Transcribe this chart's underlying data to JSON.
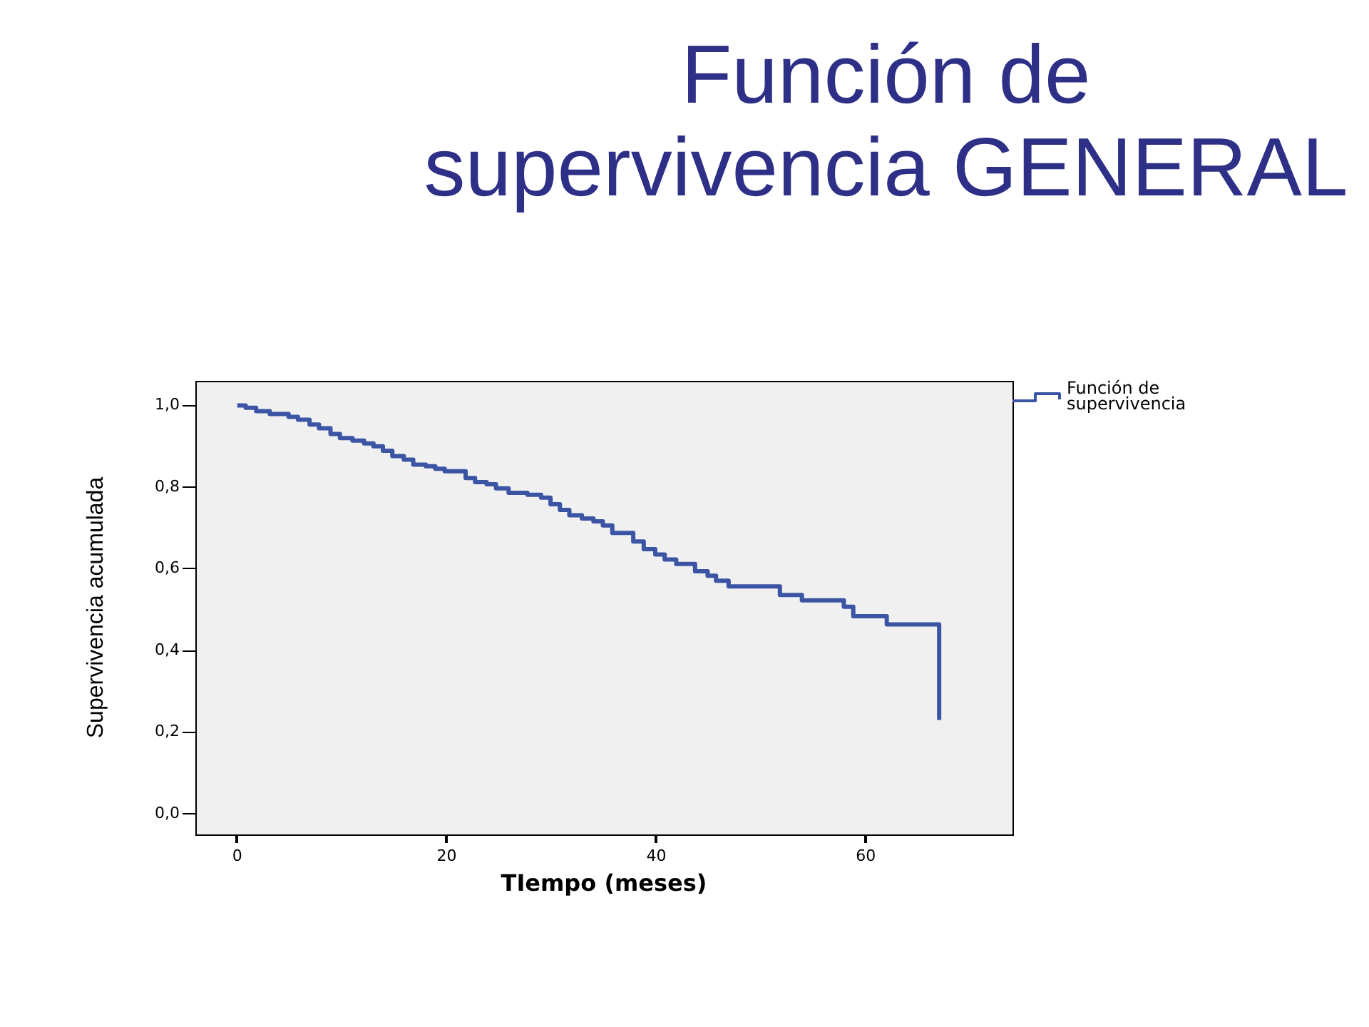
{
  "chart_data": {
    "type": "step",
    "title": "Función de supervivencia GENERAL",
    "xlabel": "TIempo (meses)",
    "ylabel": "Supervivencia acumulada",
    "x": [
      0,
      0.8,
      1.8,
      3.1,
      4.9,
      5.8,
      6.9,
      7.8,
      8.9,
      9.8,
      11.0,
      12.1,
      13.0,
      13.9,
      14.8,
      15.9,
      16.8,
      18.0,
      18.9,
      19.8,
      21.8,
      22.7,
      23.8,
      24.7,
      25.9,
      27.7,
      29.0,
      29.9,
      30.8,
      31.7,
      32.9,
      34.0,
      34.9,
      35.8,
      37.8,
      38.8,
      39.9,
      40.8,
      41.9,
      43.7,
      44.9,
      45.7,
      46.9,
      51.8,
      53.9,
      57.9,
      58.8,
      62.0,
      67.0
    ],
    "series": [
      {
        "name": "Función de supervivencia",
        "color": "#3b54a4",
        "values": [
          1.0,
          0.994,
          0.986,
          0.979,
          0.972,
          0.965,
          0.953,
          0.944,
          0.93,
          0.92,
          0.914,
          0.907,
          0.9,
          0.889,
          0.876,
          0.867,
          0.855,
          0.851,
          0.845,
          0.839,
          0.822,
          0.812,
          0.807,
          0.797,
          0.786,
          0.781,
          0.774,
          0.758,
          0.744,
          0.731,
          0.723,
          0.716,
          0.706,
          0.688,
          0.667,
          0.648,
          0.635,
          0.623,
          0.612,
          0.594,
          0.583,
          0.571,
          0.557,
          0.536,
          0.523,
          0.507,
          0.484,
          0.464,
          0.23
        ]
      }
    ],
    "xlim": [
      -4,
      74
    ],
    "xticks": [
      0,
      20,
      40,
      60
    ],
    "ylim": [
      -0.05,
      1.06
    ],
    "yticks": [
      {
        "value": 0,
        "label": "0,0"
      },
      {
        "value": 0.2,
        "label": "0,2"
      },
      {
        "value": 0.4,
        "label": "0,4"
      },
      {
        "value": 0.6,
        "label": "0,6"
      },
      {
        "value": 0.8,
        "label": "0,8"
      },
      {
        "value": 1,
        "label": "1,0"
      }
    ],
    "legend": "top right",
    "line_style": "solid"
  }
}
